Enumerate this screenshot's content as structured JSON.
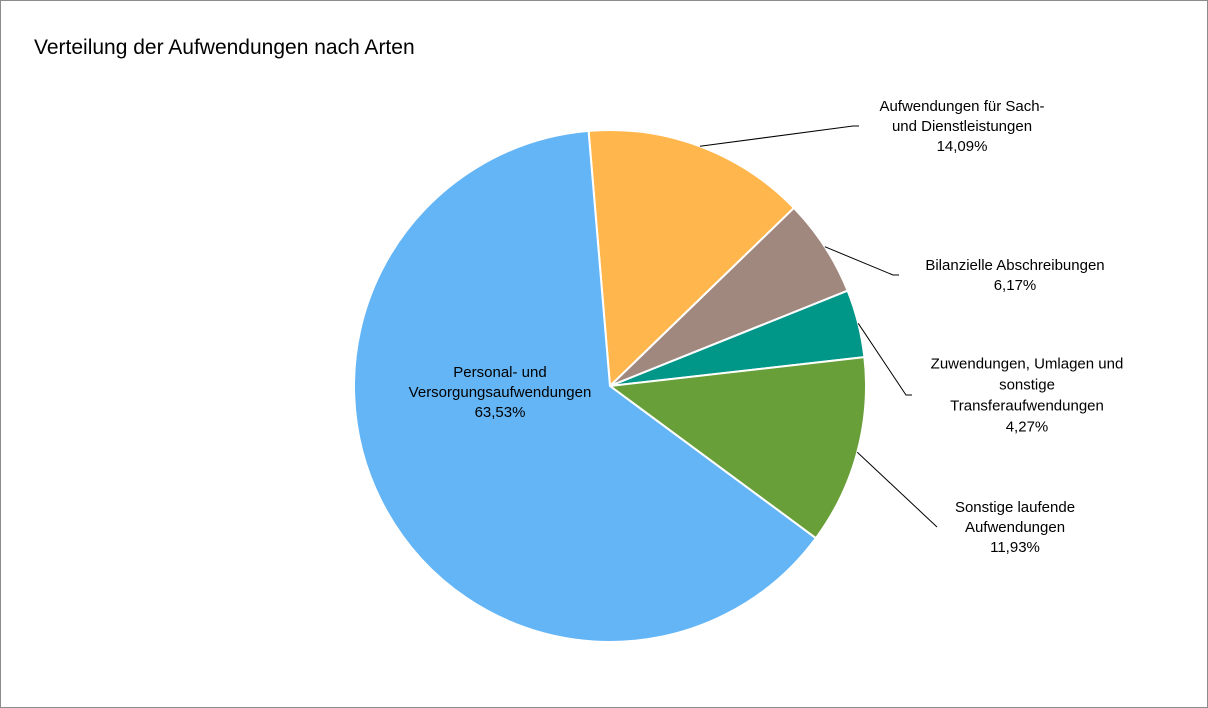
{
  "chart_data": {
    "type": "pie",
    "title": "Verteilung der Aufwendungen nach Arten",
    "start_angle_deg": -4.8,
    "direction": "clockwise",
    "slices": [
      {
        "label_lines": [
          "Aufwendungen für Sach-",
          "und Dienstleistungen"
        ],
        "value_label": "14,09%",
        "value": 14.09,
        "color": "#ffb74d",
        "label_pos": "outside-right"
      },
      {
        "label_lines": [
          "Bilanzielle Abschreibungen"
        ],
        "value_label": "6,17%",
        "value": 6.17,
        "color": "#a1887f",
        "label_pos": "outside-right"
      },
      {
        "label_lines": [
          "Zuwendungen, Umlagen und",
          "sonstige",
          "Transferaufwendungen"
        ],
        "value_label": "4,27%",
        "value": 4.27,
        "color": "#009688",
        "label_pos": "outside-right"
      },
      {
        "label_lines": [
          "Sonstige laufende",
          "Aufwendungen"
        ],
        "value_label": "11,93%",
        "value": 11.93,
        "color": "#689f38",
        "label_pos": "outside-right"
      },
      {
        "label_lines": [
          "Personal- und",
          "Versorgungsaufwendungen"
        ],
        "value_label": "63,53%",
        "value": 63.53,
        "color": "#64b5f6",
        "label_pos": "inside"
      }
    ]
  }
}
